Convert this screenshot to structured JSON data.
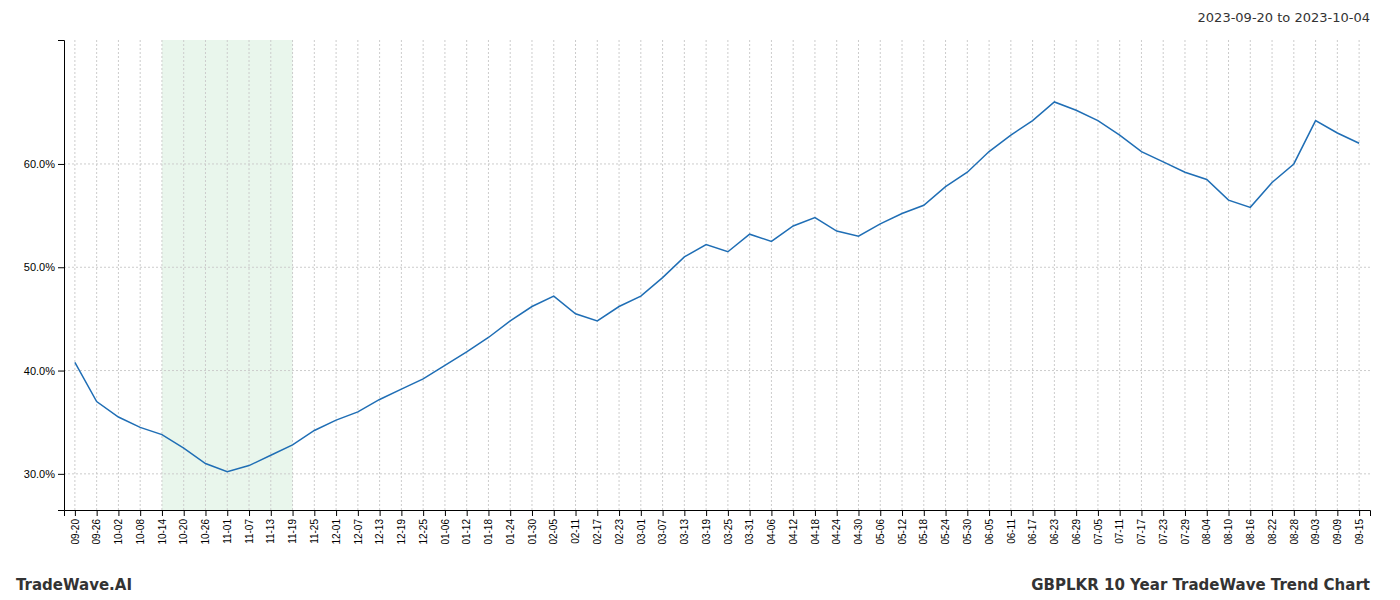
{
  "chart_data": {
    "type": "line",
    "title": "2023-09-20 to 2023-10-04",
    "annotations": [
      "TradeWave.AI",
      "GBPLKR 10 Year TradeWave Trend Chart"
    ],
    "color": "#1f6eb5",
    "grid": true,
    "shade": {
      "from": "10-14",
      "to": "11-19",
      "color": "#d4edda"
    },
    "ylim": [
      0.265,
      0.72
    ],
    "yticks": [
      {
        "value": 0.3,
        "label": "30.0%"
      },
      {
        "value": 0.4,
        "label": "40.0%"
      },
      {
        "value": 0.5,
        "label": "50.0%"
      },
      {
        "value": 0.6,
        "label": "60.0%"
      }
    ],
    "categories": [
      "09-20",
      "09-26",
      "10-02",
      "10-08",
      "10-14",
      "10-20",
      "10-26",
      "11-01",
      "11-07",
      "11-13",
      "11-19",
      "11-25",
      "12-01",
      "12-07",
      "12-13",
      "12-19",
      "12-25",
      "01-06",
      "01-12",
      "01-18",
      "01-24",
      "01-30",
      "02-05",
      "02-11",
      "02-17",
      "02-23",
      "03-01",
      "03-07",
      "03-13",
      "03-19",
      "03-25",
      "03-31",
      "04-06",
      "04-12",
      "04-18",
      "04-24",
      "04-30",
      "05-06",
      "05-12",
      "05-18",
      "05-24",
      "05-30",
      "06-05",
      "06-11",
      "06-17",
      "06-23",
      "06-29",
      "07-05",
      "07-11",
      "07-17",
      "07-23",
      "07-29",
      "08-04",
      "08-10",
      "08-16",
      "08-22",
      "08-28",
      "09-03",
      "09-09",
      "09-15"
    ],
    "values": [
      0.408,
      0.37,
      0.355,
      0.345,
      0.338,
      0.325,
      0.31,
      0.302,
      0.308,
      0.318,
      0.328,
      0.342,
      0.352,
      0.36,
      0.372,
      0.382,
      0.392,
      0.405,
      0.418,
      0.432,
      0.448,
      0.462,
      0.472,
      0.455,
      0.448,
      0.462,
      0.472,
      0.49,
      0.51,
      0.522,
      0.515,
      0.532,
      0.525,
      0.54,
      0.548,
      0.535,
      0.53,
      0.542,
      0.552,
      0.56,
      0.578,
      0.592,
      0.612,
      0.628,
      0.642,
      0.66,
      0.652,
      0.642,
      0.628,
      0.612,
      0.602,
      0.592,
      0.585,
      0.565,
      0.558,
      0.582,
      0.6,
      0.642,
      0.63,
      0.62
    ]
  }
}
